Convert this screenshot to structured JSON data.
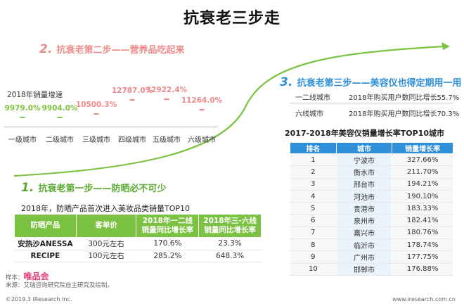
{
  "title": "抗衰老三步走",
  "step2": {
    "num": "2.",
    "text": "抗衰老第二步——营养品吃起来",
    "growth_label": "2018年销量增速"
  },
  "chart_data": {
    "type": "bar",
    "title": "2018年销量增速",
    "categories": [
      "一级城市",
      "二级城市",
      "三级城市",
      "四级城市",
      "五级城市",
      "六级城市"
    ],
    "values": [
      9979.0,
      9904.0,
      10500.3,
      12787.0,
      12922.4,
      11264.0
    ],
    "value_labels": [
      "9979.0%",
      "9904.0%",
      "10500.3%",
      "12787.0%",
      "12922.4%",
      "11264.0%"
    ],
    "unit": "%",
    "colors": [
      "#7cc242",
      "#7cc242",
      "#f08a8a",
      "#f08a8a",
      "#f08a8a",
      "#f08a8a"
    ],
    "ylim": [
      9500,
      13400
    ]
  },
  "step1": {
    "num": "1.",
    "text": "抗衰老第一步——防晒必不可少",
    "table_title": "2018年，防晒产品首次进入美妆品类销量TOP10",
    "headers": [
      "防晒产品",
      "客单价",
      "2018年一二线\n销量同比增长率",
      "2018年三-六线\n销量同比增长率"
    ],
    "rows": [
      [
        "安热沙ANESSA",
        "300元左右",
        "170.6%",
        "23.3%"
      ],
      [
        "RECIPE",
        "100元左右",
        "285.2%",
        "648.3%"
      ]
    ]
  },
  "step3": {
    "num": "3.",
    "text": "抗衰老第三步——美容仪也得定期用一用",
    "tiers": [
      {
        "city": "一二线城市",
        "stat": "2018年购买用户数同比增长55.7%"
      },
      {
        "city": "六线城市",
        "stat": "2018年购买用户数同比增长70.3%"
      }
    ],
    "table_title": "2017-2018年美容仪销量增长率TOP10城市",
    "headers": [
      "排名",
      "城市",
      "销量增长率"
    ],
    "rows": [
      [
        "1",
        "宁波市",
        "327.66%"
      ],
      [
        "2",
        "衡水市",
        "211.70%"
      ],
      [
        "3",
        "邢台市",
        "194.21%"
      ],
      [
        "4",
        "河池市",
        "190.10%"
      ],
      [
        "5",
        "贵港市",
        "183.33%"
      ],
      [
        "6",
        "泉州市",
        "182.41%"
      ],
      [
        "7",
        "嘉兴市",
        "180.76%"
      ],
      [
        "8",
        "临沂市",
        "178.74%"
      ],
      [
        "9",
        "广州市",
        "177.75%"
      ],
      [
        "10",
        "邯郸市",
        "176.88%"
      ]
    ]
  },
  "source": {
    "sample_label": "样本：",
    "brand": "唯品会",
    "note": "来源：艾瑞咨询研究院自主研究及绘制。"
  },
  "footer": {
    "copyright": "©2019.3 iResearch Inc.",
    "website": "www.iresearch.com.cn"
  },
  "colors": {
    "green": "#7cc242",
    "pink": "#f08a8a",
    "blue": "#2f8fd8"
  }
}
